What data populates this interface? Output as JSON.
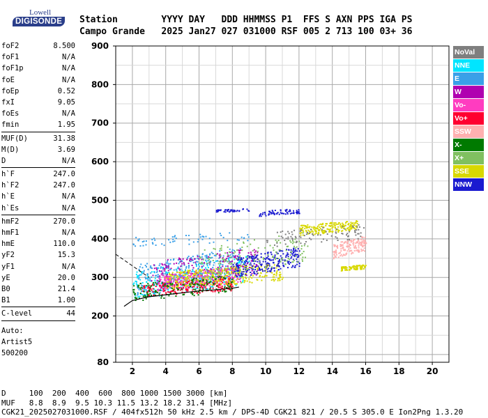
{
  "logo": {
    "line1": "Lowell",
    "line2": "DIGISONDE"
  },
  "header": {
    "labels": "Station        YYYY DAY   DDD HHMMSS P1  FFS S AXN PPS IGA PS",
    "values": "Campo Grande   2025 Jan27 027 031000 RSF 005 2 713 100 03+ 36"
  },
  "params": {
    "group1": [
      {
        "k": "foF2",
        "v": "8.500"
      },
      {
        "k": "foF1",
        "v": "N/A"
      },
      {
        "k": "foF1p",
        "v": "N/A"
      },
      {
        "k": "foE",
        "v": "N/A"
      },
      {
        "k": "foEp",
        "v": "0.52"
      },
      {
        "k": "fxI",
        "v": "9.05"
      },
      {
        "k": "foEs",
        "v": "N/A"
      },
      {
        "k": "fmin",
        "v": "1.95"
      }
    ],
    "group2": [
      {
        "k": "MUF(D)",
        "v": "31.38"
      },
      {
        "k": "M(D)",
        "v": "3.69"
      },
      {
        "k": "D",
        "v": "N/A"
      }
    ],
    "group3": [
      {
        "k": "h`F",
        "v": "247.0"
      },
      {
        "k": "h`F2",
        "v": "247.0"
      },
      {
        "k": "h`E",
        "v": "N/A"
      },
      {
        "k": "h`Es",
        "v": "N/A"
      }
    ],
    "group4": [
      {
        "k": "hmF2",
        "v": "270.0"
      },
      {
        "k": "hmF1",
        "v": "N/A"
      },
      {
        "k": "hmE",
        "v": "110.0"
      },
      {
        "k": "yF2",
        "v": "15.3"
      },
      {
        "k": "yF1",
        "v": "N/A"
      },
      {
        "k": "yE",
        "v": "20.0"
      },
      {
        "k": "B0",
        "v": "21.4"
      },
      {
        "k": "B1",
        "v": "1.00"
      }
    ],
    "group5": [
      {
        "k": "C-level",
        "v": "44"
      }
    ],
    "auto_label": "Auto:",
    "auto_program": "Artist5",
    "auto_version": "500200"
  },
  "legend": [
    {
      "label": "NoVal",
      "color": "#7f7f7f"
    },
    {
      "label": "NNE",
      "color": "#00e5ff"
    },
    {
      "label": "E",
      "color": "#3aa0e8"
    },
    {
      "label": "W",
      "color": "#b000b0"
    },
    {
      "label": "Vo-",
      "color": "#ff3cc0"
    },
    {
      "label": "Vo+",
      "color": "#ff0030"
    },
    {
      "label": "SSW",
      "color": "#ffb0b0"
    },
    {
      "label": "X-",
      "color": "#007a00"
    },
    {
      "label": "X+",
      "color": "#80c060"
    },
    {
      "label": "SSE",
      "color": "#d8d800"
    },
    {
      "label": "NNW",
      "color": "#1a1ad0"
    }
  ],
  "chart_data": {
    "type": "scatter",
    "xlim": [
      1,
      21
    ],
    "ylim": [
      80,
      900
    ],
    "x_ticks": [
      2,
      4,
      6,
      8,
      10,
      12,
      14,
      16,
      18,
      20
    ],
    "y_ticks": [
      80,
      200,
      300,
      400,
      500,
      600,
      700,
      800,
      900
    ],
    "grid": true,
    "clusters": [
      {
        "color": "#3aa0e8",
        "x": [
          2.2,
          8.5
        ],
        "y": [
          250,
          380
        ],
        "n": 420
      },
      {
        "color": "#00e5ff",
        "x": [
          2.0,
          9.0
        ],
        "y": [
          245,
          360
        ],
        "n": 220
      },
      {
        "color": "#b000b0",
        "x": [
          3.0,
          9.5
        ],
        "y": [
          270,
          380
        ],
        "n": 220
      },
      {
        "color": "#ff3cc0",
        "x": [
          3.5,
          8.5
        ],
        "y": [
          265,
          330
        ],
        "n": 260
      },
      {
        "color": "#ff0030",
        "x": [
          2.5,
          8.0
        ],
        "y": [
          250,
          300
        ],
        "n": 200
      },
      {
        "color": "#d8d800",
        "x": [
          4.0,
          11.0
        ],
        "y": [
          270,
          340
        ],
        "n": 300
      },
      {
        "color": "#1a1ad0",
        "x": [
          8.0,
          12.0
        ],
        "y": [
          300,
          380
        ],
        "n": 260
      },
      {
        "color": "#007a00",
        "x": [
          2.0,
          8.0
        ],
        "y": [
          240,
          310
        ],
        "n": 160
      },
      {
        "color": "#80c060",
        "x": [
          6.0,
          12.5
        ],
        "y": [
          300,
          420
        ],
        "n": 160
      },
      {
        "color": "#ffb0b0",
        "x": [
          14.0,
          16.0
        ],
        "y": [
          350,
          410
        ],
        "n": 160
      },
      {
        "color": "#d8d800",
        "x": [
          12.0,
          15.5
        ],
        "y": [
          410,
          450
        ],
        "n": 200
      },
      {
        "color": "#d8d800",
        "x": [
          14.5,
          16.0
        ],
        "y": [
          318,
          335
        ],
        "n": 90
      },
      {
        "color": "#1a1ad0",
        "x": [
          9.5,
          12.0
        ],
        "y": [
          460,
          480
        ],
        "n": 70
      },
      {
        "color": "#1a1ad0",
        "x": [
          7.0,
          9.0
        ],
        "y": [
          470,
          480
        ],
        "n": 40
      },
      {
        "color": "#3aa0e8",
        "x": [
          2.0,
          9.0
        ],
        "y": [
          380,
          420
        ],
        "n": 60
      },
      {
        "color": "#7f7f7f",
        "x": [
          10.0,
          16.0
        ],
        "y": [
          380,
          440
        ],
        "n": 90
      }
    ],
    "trace_curve": {
      "x": [
        1.5,
        2.0,
        3.0,
        4.0,
        5.0,
        6.0,
        7.0,
        8.0,
        8.4
      ],
      "y": [
        225,
        240,
        250,
        255,
        260,
        265,
        268,
        272,
        275
      ]
    },
    "dashed_curve": {
      "x": [
        1.0,
        1.5,
        2.0,
        2.5,
        3.0
      ],
      "y": [
        360,
        345,
        330,
        315,
        300
      ]
    }
  },
  "footer": {
    "line1": "D     100  200  400  600  800 1000 1500 3000 [km]",
    "line2": "MUF   8.8  8.9  9.5 10.3 11.5 13.2 18.2 31.4 [MHz]",
    "line3": "CGK21_2025027031000.RSF / 404fx512h 50 kHz 2.5 km / DPS-4D CGK21 821 / 20.5 S 305.0 E Ion2Png 1.3.20"
  }
}
